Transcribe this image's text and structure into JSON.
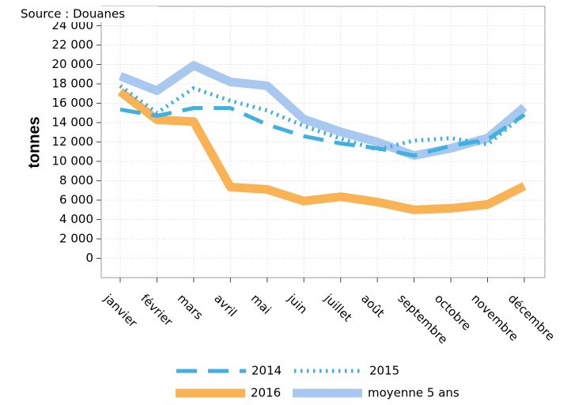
{
  "chart_data": {
    "type": "line",
    "source": "Source : Douanes",
    "y_label": "tonnes",
    "categories": [
      "janvier",
      "février",
      "mars",
      "avril",
      "mai",
      "juin",
      "juillet",
      "août",
      "septembre",
      "octobre",
      "novembre",
      "décembre"
    ],
    "series": [
      {
        "name": "2014",
        "color": "#3fb0e0",
        "style": "dashed",
        "values": [
          15350,
          14700,
          15500,
          15500,
          13800,
          12600,
          11850,
          11350,
          10600,
          11600,
          12250,
          14800
        ]
      },
      {
        "name": "2015",
        "color": "#3fb0e0",
        "style": "dotted",
        "values": [
          17800,
          15000,
          17550,
          16250,
          15250,
          13650,
          12350,
          11200,
          12150,
          12400,
          11750,
          14850
        ]
      },
      {
        "name": "2016",
        "color": "#f9b355",
        "style": "solid",
        "values": [
          17200,
          14300,
          14100,
          7350,
          7100,
          5900,
          6350,
          5800,
          5000,
          5150,
          5550,
          7450
        ]
      },
      {
        "name": "moyenne 5 ans",
        "color": "#a8c8f0",
        "style": "solid",
        "values": [
          18800,
          17300,
          19900,
          18200,
          17800,
          14350,
          13050,
          12000,
          10600,
          11350,
          12400,
          15600
        ]
      }
    ],
    "ylim": [
      -2000,
      26000
    ],
    "yticks": [
      0,
      {
        "value": 2000,
        "label": "2 000"
      },
      {
        "value": 4000,
        "label": "4 000"
      },
      {
        "value": 6000,
        "label": "6 000"
      },
      {
        "value": 8000,
        "label": "8 000"
      },
      {
        "value": 10000,
        "label": "10 000"
      },
      {
        "value": 12000,
        "label": "12 000"
      },
      {
        "value": 14000,
        "label": "14 000"
      },
      {
        "value": 16000,
        "label": "16 000"
      },
      {
        "value": 18000,
        "label": "18 000"
      },
      {
        "value": 20000,
        "label": "20 000"
      },
      {
        "value": 22000,
        "label": "22 000"
      },
      {
        "value": 24000,
        "label": "24 000"
      }
    ],
    "grid": true
  }
}
